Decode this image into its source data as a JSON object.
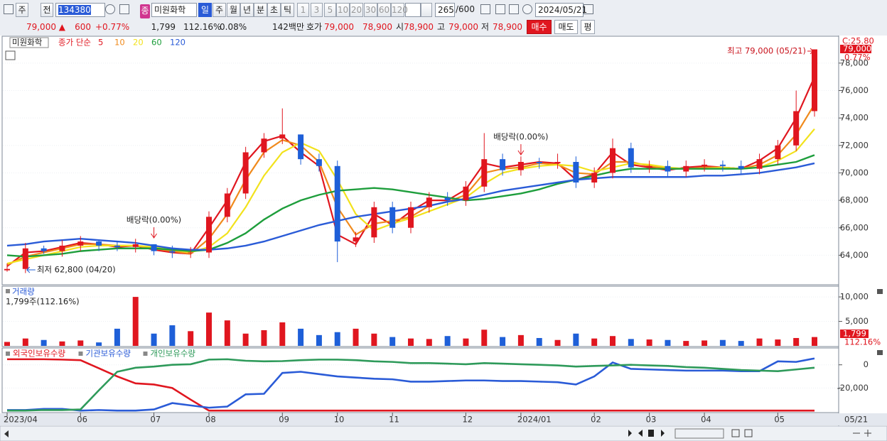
{
  "toolbar": {
    "market": "주",
    "prev": "전",
    "code": "134380",
    "badge": "종",
    "name": "미원화학",
    "periods": [
      "일",
      "주",
      "월",
      "년",
      "분",
      "초",
      "틱"
    ],
    "intervals": [
      "1",
      "3",
      "5",
      "10",
      "20",
      "30",
      "60",
      "120"
    ],
    "count": "265",
    "count_max": "/600",
    "date": "2024/05/21"
  },
  "quote": {
    "price": "79,000 ▲",
    "change": "600",
    "change_rate": "+0.77%",
    "volume": "1,799",
    "volume_ratio": "112.16%",
    "turnover": "0.08%",
    "amount": "142백만",
    "ask_label": "호가",
    "ask": "79,000",
    "bid": "78,900",
    "open_label": "시",
    "open": "78,900",
    "high_label": "고",
    "high": "79,000",
    "low_label": "저",
    "low": "78,900",
    "buy": "매수",
    "sell": "매도",
    "avg": "평"
  },
  "chart_data": [
    {
      "type": "candlestick",
      "title": "미원화학",
      "ma_label": "종가 단순",
      "categories": [
        "2023/04",
        null,
        null,
        null,
        "06",
        null,
        null,
        null,
        "07",
        null,
        null,
        "08",
        null,
        null,
        null,
        "09",
        null,
        null,
        "10",
        null,
        null,
        "11",
        null,
        null,
        null,
        "12",
        null,
        null,
        "2024/01",
        null,
        null,
        null,
        "02",
        null,
        null,
        "03",
        null,
        null,
        "04",
        null,
        null,
        null,
        "05",
        null,
        null
      ],
      "open": [
        62900,
        63000,
        64500,
        64300,
        64700,
        65000,
        64700,
        64600,
        64800,
        64300,
        64200,
        64200,
        66800,
        68500,
        71500,
        72500,
        72800,
        71000,
        70500,
        65000,
        65300,
        67500,
        66000,
        67500,
        68200,
        68000,
        69000,
        71000,
        70200,
        70800,
        70700,
        70800,
        69300,
        70000,
        71800,
        70400,
        70500,
        70100,
        70500,
        70600,
        70500,
        70300,
        71000,
        72000,
        74500
      ],
      "high": [
        63400,
        64900,
        64700,
        65100,
        65400,
        65100,
        65000,
        65200,
        64800,
        64700,
        64600,
        67200,
        68900,
        71900,
        72900,
        74700,
        72800,
        71400,
        70900,
        65700,
        67900,
        67900,
        67900,
        68600,
        68600,
        69400,
        72900,
        71400,
        71200,
        71100,
        71400,
        71200,
        70400,
        72500,
        72200,
        70900,
        70900,
        70900,
        71000,
        70900,
        70900,
        71400,
        72400,
        76000,
        79000
      ],
      "low": [
        62800,
        62700,
        64100,
        63900,
        64300,
        64300,
        64300,
        64200,
        64000,
        63800,
        63800,
        63800,
        66400,
        68100,
        71100,
        72100,
        70600,
        70100,
        63500,
        64600,
        64900,
        65600,
        65600,
        67100,
        67600,
        67600,
        68600,
        69800,
        69800,
        70300,
        70300,
        68900,
        68900,
        69600,
        70000,
        70000,
        69700,
        69700,
        70100,
        70100,
        69900,
        69900,
        70600,
        71600,
        74100
      ],
      "close": [
        63000,
        64500,
        64300,
        64700,
        65000,
        64700,
        64600,
        64800,
        64300,
        64200,
        64200,
        66800,
        68500,
        71500,
        72500,
        72800,
        71000,
        70500,
        65000,
        65300,
        67500,
        66000,
        67500,
        68200,
        68000,
        69000,
        71000,
        70200,
        70800,
        70700,
        70800,
        69300,
        70000,
        71800,
        70400,
        70500,
        70100,
        70500,
        70600,
        70500,
        70300,
        71000,
        72000,
        74500,
        79000
      ],
      "up_color": "#e0161f",
      "down_color": "#1e5fd8",
      "ma": [
        {
          "name": "5",
          "color": "#e0161f",
          "values": [
            63200,
            64200,
            64300,
            64600,
            64900,
            64800,
            64600,
            64700,
            64400,
            64200,
            64100,
            66000,
            68000,
            70800,
            72300,
            72700,
            71500,
            70500,
            65500,
            64800,
            67000,
            66200,
            67200,
            68000,
            68000,
            68800,
            70700,
            70400,
            70600,
            70800,
            70700,
            69500,
            69900,
            71500,
            70600,
            70400,
            70200,
            70400,
            70500,
            70400,
            70300,
            70900,
            71800,
            74000,
            77000
          ]
        },
        {
          "name": "10",
          "color": "#f08a1c",
          "values": [
            63300,
            63900,
            64200,
            64500,
            64800,
            64800,
            64700,
            64700,
            64500,
            64300,
            64100,
            65200,
            67000,
            69500,
            71500,
            72400,
            72000,
            70800,
            67500,
            65500,
            66300,
            66500,
            66800,
            67600,
            67900,
            68400,
            70000,
            70300,
            70400,
            70700,
            70600,
            70000,
            69900,
            70800,
            70800,
            70500,
            70300,
            70300,
            70400,
            70400,
            70300,
            70600,
            71300,
            72800,
            75000
          ]
        },
        {
          "name": "20",
          "color": "#f2e21c",
          "values": [
            63400,
            63700,
            64000,
            64300,
            64600,
            64700,
            64700,
            64700,
            64600,
            64400,
            64200,
            64600,
            65600,
            67500,
            69800,
            71500,
            72200,
            71600,
            69500,
            67000,
            65800,
            66300,
            66700,
            67200,
            67700,
            68200,
            69200,
            70000,
            70300,
            70500,
            70600,
            70500,
            70100,
            70400,
            70700,
            70600,
            70400,
            70300,
            70300,
            70400,
            70300,
            70400,
            70900,
            71600,
            73200
          ]
        },
        {
          "name": "60",
          "color": "#1e9e3c",
          "values": [
            64000,
            63900,
            64000,
            64100,
            64300,
            64400,
            64500,
            64500,
            64500,
            64400,
            64300,
            64400,
            64900,
            65600,
            66600,
            67400,
            68000,
            68400,
            68700,
            68800,
            68900,
            68800,
            68600,
            68400,
            68200,
            68000,
            68100,
            68300,
            68500,
            68800,
            69200,
            69500,
            69800,
            70100,
            70300,
            70300,
            70300,
            70300,
            70300,
            70300,
            70300,
            70400,
            70600,
            70800,
            71300
          ]
        },
        {
          "name": "120",
          "color": "#2a5bd7",
          "values": [
            64700,
            64800,
            65000,
            65100,
            65200,
            65100,
            65000,
            64900,
            64700,
            64500,
            64400,
            64400,
            64500,
            64700,
            65000,
            65400,
            65800,
            66200,
            66500,
            66800,
            67000,
            67200,
            67400,
            67600,
            67900,
            68100,
            68400,
            68700,
            68900,
            69100,
            69300,
            69500,
            69600,
            69700,
            69700,
            69700,
            69700,
            69700,
            69800,
            69800,
            69900,
            70000,
            70200,
            70400,
            70700
          ]
        }
      ],
      "ylim": [
        61900,
        79700
      ],
      "yticks": [
        {
          "value": 64000,
          "label": "64,000"
        },
        {
          "value": 66000,
          "label": "66,000"
        },
        {
          "value": 68000,
          "label": "68,000"
        },
        {
          "value": 70000,
          "label": "70,000"
        },
        {
          "value": 72000,
          "label": "72,000"
        },
        {
          "value": 74000,
          "label": "74,000"
        },
        {
          "value": 76000,
          "label": "76,000"
        },
        {
          "value": 78000,
          "label": "78,000"
        }
      ],
      "annotations": {
        "high": "최고 79,000 (05/21)",
        "low": "최저 62,800 (04/20)",
        "ex_dividend": [
          "배당락(0.00%)",
          "배당락(0.00%)"
        ]
      },
      "right_labels": {
        "c_label": "C:25.80",
        "last": "79,000",
        "change": "0.77%"
      },
      "x_end_label": "05/21"
    },
    {
      "type": "bar",
      "title": "거래량",
      "subtitle": "1,799주(112.16%)",
      "values": [
        800,
        1500,
        1200,
        900,
        1100,
        700,
        3500,
        10000,
        2500,
        4200,
        3000,
        6800,
        5200,
        2500,
        3200,
        4800,
        3500,
        2200,
        2800,
        3500,
        2500,
        1800,
        1500,
        1400,
        2000,
        1500,
        3300,
        1800,
        2200,
        1600,
        1200,
        2500,
        1500,
        2000,
        1400,
        1300,
        1200,
        1000,
        1100,
        1200,
        1000,
        1500,
        1300,
        1600,
        1799
      ],
      "ylim": [
        0,
        11900
      ],
      "yticks": [
        {
          "value": 5000,
          "label": "5,000"
        },
        {
          "value": 10000,
          "label": "10,000"
        }
      ],
      "last_label": "1,799",
      "ratio_label": "112.16%"
    },
    {
      "type": "line",
      "series": [
        {
          "name": "외국인보유수량",
          "color": "#e0161f",
          "values": [
            4800,
            4800,
            4800,
            4500,
            4000,
            -3000,
            -10000,
            -16000,
            -17000,
            -20000,
            -30000,
            -39500,
            -39500,
            -39500,
            -39500,
            -39500,
            -39500,
            -39500,
            -39500,
            -39500,
            -39500,
            -39500,
            -39500,
            -39500,
            -39500,
            -39500,
            -39500,
            -39500,
            -39500,
            -39500,
            -39500,
            -39500,
            -39500,
            -39500,
            -39500,
            -39500,
            -39500,
            -39500,
            -39500,
            -39500,
            -39500,
            -39500,
            -39500,
            -39500,
            -39500
          ]
        },
        {
          "name": "기관보유수량",
          "color": "#2a5bd7",
          "values": [
            -39000,
            -39000,
            -38000,
            -38000,
            -39500,
            -39000,
            -39500,
            -39500,
            -38500,
            -33000,
            -35000,
            -37000,
            -36000,
            -25500,
            -25000,
            -7000,
            -6000,
            -8000,
            -10000,
            -11000,
            -12000,
            -12500,
            -14500,
            -14500,
            -14000,
            -13500,
            -13500,
            -14000,
            -14000,
            -14500,
            -15000,
            -17000,
            -10000,
            2000,
            -3500,
            -4000,
            -4500,
            -5000,
            -5000,
            -5000,
            -5500,
            -5500,
            3000,
            2500,
            5500
          ]
        },
        {
          "name": "개인보유수량",
          "color": "#2e9a5a",
          "values": [
            -39500,
            -39500,
            -39000,
            -39000,
            -38500,
            -22000,
            -6000,
            -2500,
            -1500,
            0,
            500,
            4500,
            4800,
            3500,
            3000,
            3200,
            4000,
            4500,
            4500,
            4000,
            3000,
            2500,
            1500,
            1500,
            1000,
            500,
            1500,
            1000,
            500,
            0,
            -500,
            -1500,
            -1000,
            -500,
            0,
            -500,
            -1000,
            -2000,
            -2500,
            -3500,
            -4500,
            -5000,
            -5500,
            -4000,
            -2500
          ]
        }
      ],
      "ylim": [
        -40600,
        13300
      ],
      "yticks": [
        0,
        {
          "value": -20000,
          "label": "-20,000"
        }
      ]
    }
  ]
}
